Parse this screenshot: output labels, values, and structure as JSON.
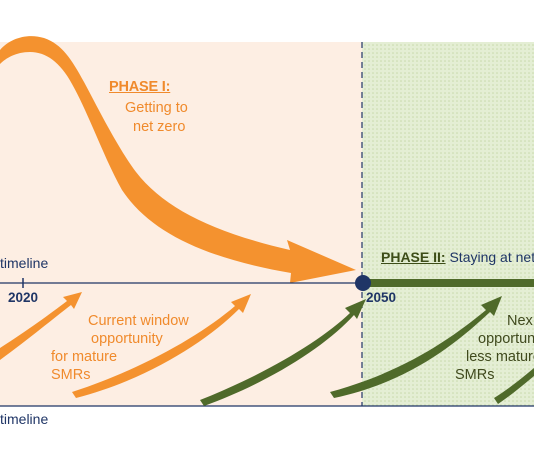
{
  "phase1": {
    "title": "PHASE I:",
    "line1": "Getting to",
    "line2": "net zero"
  },
  "phase2": {
    "title": "PHASE II:",
    "text": "Staying at net"
  },
  "upper_axis": {
    "label": "timeline",
    "year_start": "2020",
    "year_end": "2050"
  },
  "lower_axis": {
    "label": "timeline"
  },
  "current_window": {
    "line1": "Current window",
    "line2": "opportunity",
    "line3": "for mature",
    "line4": "SMRs"
  },
  "next_window": {
    "line1": "Nex",
    "line2": "opportun",
    "line3": "less mature",
    "line4": "SMRs"
  },
  "colors": {
    "orange": "#f4922f",
    "dark_green": "#4f6a2a",
    "navy": "#1f3566",
    "phase1_bg": "#fdeee3",
    "phase2_bg": "#e6f0d6"
  }
}
